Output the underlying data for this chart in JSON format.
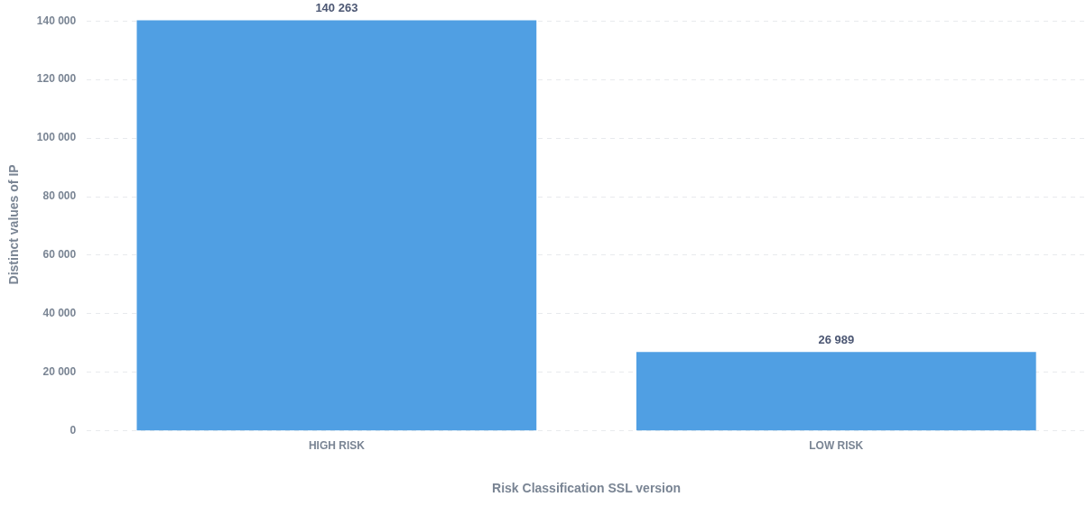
{
  "chart_data": {
    "type": "bar",
    "xlabel": "Risk Classification SSL version",
    "ylabel": "Distinct values of IP",
    "categories": [
      "HIGH RISK",
      "LOW RISK"
    ],
    "values": [
      140263,
      26989
    ],
    "color": "#509fe3",
    "value_labels": [
      "140 263",
      "26 989"
    ],
    "ylim": [
      0,
      141000
    ],
    "yticks": [
      {
        "value": 0,
        "label": "0"
      },
      {
        "value": 20000,
        "label": "20 000"
      },
      {
        "value": 40000,
        "label": "40 000"
      },
      {
        "value": 60000,
        "label": "60 000"
      },
      {
        "value": 80000,
        "label": "80 000"
      },
      {
        "value": 100000,
        "label": "100 000"
      },
      {
        "value": 120000,
        "label": "120 000"
      },
      {
        "value": 140000,
        "label": "140 000"
      }
    ],
    "grid": "y",
    "legend": false
  }
}
